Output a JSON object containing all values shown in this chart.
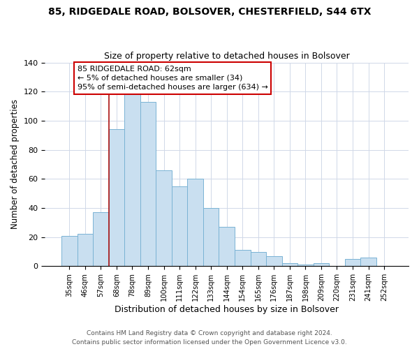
{
  "title": "85, RIDGEDALE ROAD, BOLSOVER, CHESTERFIELD, S44 6TX",
  "subtitle": "Size of property relative to detached houses in Bolsover",
  "xlabel": "Distribution of detached houses by size in Bolsover",
  "ylabel": "Number of detached properties",
  "bar_labels": [
    "35sqm",
    "46sqm",
    "57sqm",
    "68sqm",
    "78sqm",
    "89sqm",
    "100sqm",
    "111sqm",
    "122sqm",
    "133sqm",
    "144sqm",
    "154sqm",
    "165sqm",
    "176sqm",
    "187sqm",
    "198sqm",
    "209sqm",
    "220sqm",
    "231sqm",
    "241sqm",
    "252sqm"
  ],
  "bar_values": [
    21,
    22,
    37,
    94,
    118,
    113,
    66,
    55,
    60,
    40,
    27,
    11,
    10,
    7,
    2,
    1,
    2,
    0,
    5,
    6,
    0
  ],
  "bar_color": "#c9dff0",
  "bar_edge_color": "#7ab3d4",
  "vline_color": "#aa1111",
  "annotation_text": "85 RIDGEDALE ROAD: 62sqm\n← 5% of detached houses are smaller (34)\n95% of semi-detached houses are larger (634) →",
  "annotation_box_color": "white",
  "annotation_box_edge_color": "#cc0000",
  "ylim": [
    0,
    140
  ],
  "yticks": [
    0,
    20,
    40,
    60,
    80,
    100,
    120,
    140
  ],
  "footer1": "Contains HM Land Registry data © Crown copyright and database right 2024.",
  "footer2": "Contains public sector information licensed under the Open Government Licence v3.0."
}
